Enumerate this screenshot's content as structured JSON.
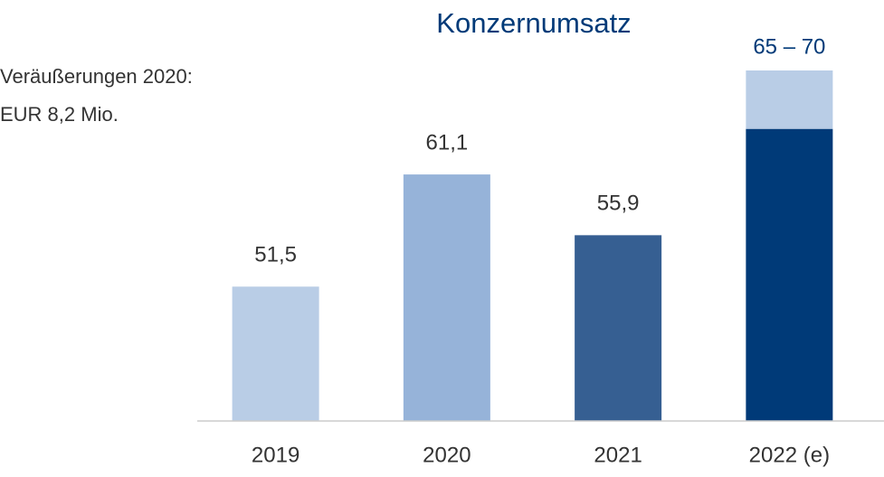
{
  "chart_data": {
    "type": "bar",
    "title": "Konzernumsatz",
    "annotations": [
      "Veräußerungen 2020:",
      "EUR 8,2 Mio."
    ],
    "categories": [
      "2019",
      "2020",
      "2021",
      "2022 (e)"
    ],
    "values": [
      51.5,
      61.1,
      55.9,
      65
    ],
    "value_labels": [
      "51,5",
      "61,1",
      "55,9",
      null
    ],
    "colors": [
      "#b9cde6",
      "#96b3d9",
      "#365f92",
      "#003a78"
    ],
    "estimate_high": [
      null,
      null,
      null,
      70
    ],
    "estimate_labels": [
      null,
      null,
      null,
      "65 – 70"
    ],
    "estimate_color": "#b9cde6",
    "ylim": [
      40,
      70
    ]
  }
}
